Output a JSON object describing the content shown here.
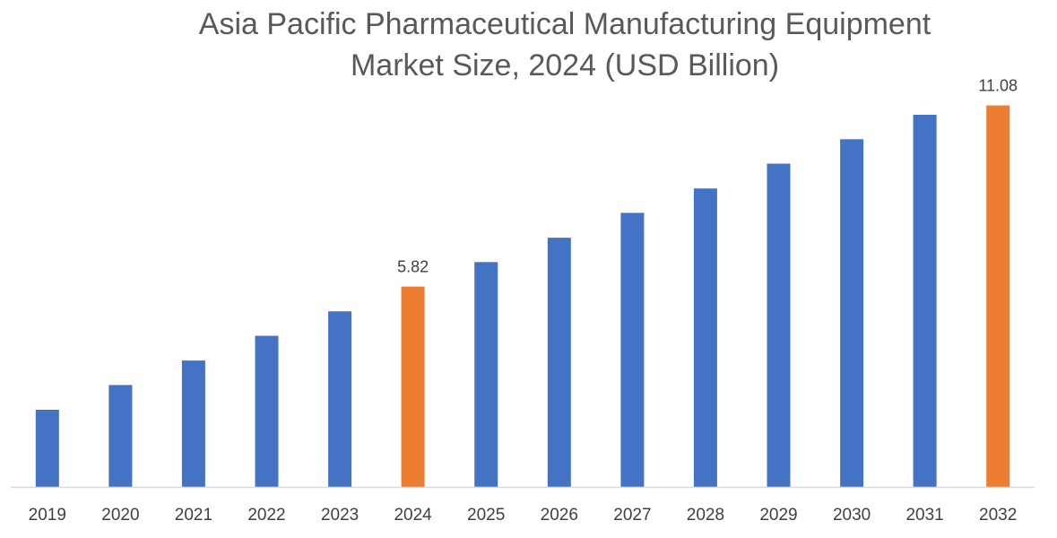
{
  "chart_data": {
    "type": "bar",
    "title_line1": "Asia Pacific Pharmaceutical Manufacturing Equipment",
    "title_line2": "Market Size, 2024 (USD Billion)",
    "xlabel": "",
    "ylabel": "",
    "categories": [
      "2019",
      "2020",
      "2021",
      "2022",
      "2023",
      "2024",
      "2025",
      "2026",
      "2027",
      "2028",
      "2029",
      "2030",
      "2031",
      "2032"
    ],
    "values": [
      2.24,
      2.96,
      3.67,
      4.39,
      5.1,
      5.82,
      6.53,
      7.24,
      7.96,
      8.67,
      9.39,
      10.1,
      10.81,
      11.08
    ],
    "data_labels": [
      {
        "index": 5,
        "text": "5.82"
      },
      {
        "index": 13,
        "text": "11.08"
      }
    ],
    "highlight_indices": [
      5,
      13
    ],
    "ylim": [
      0,
      11.8
    ],
    "grid": false,
    "legend": "none",
    "colors": {
      "bar": "#4472c4",
      "highlight": "#ed7d31",
      "axis": "#d9d9d9",
      "text": "#595959"
    }
  }
}
